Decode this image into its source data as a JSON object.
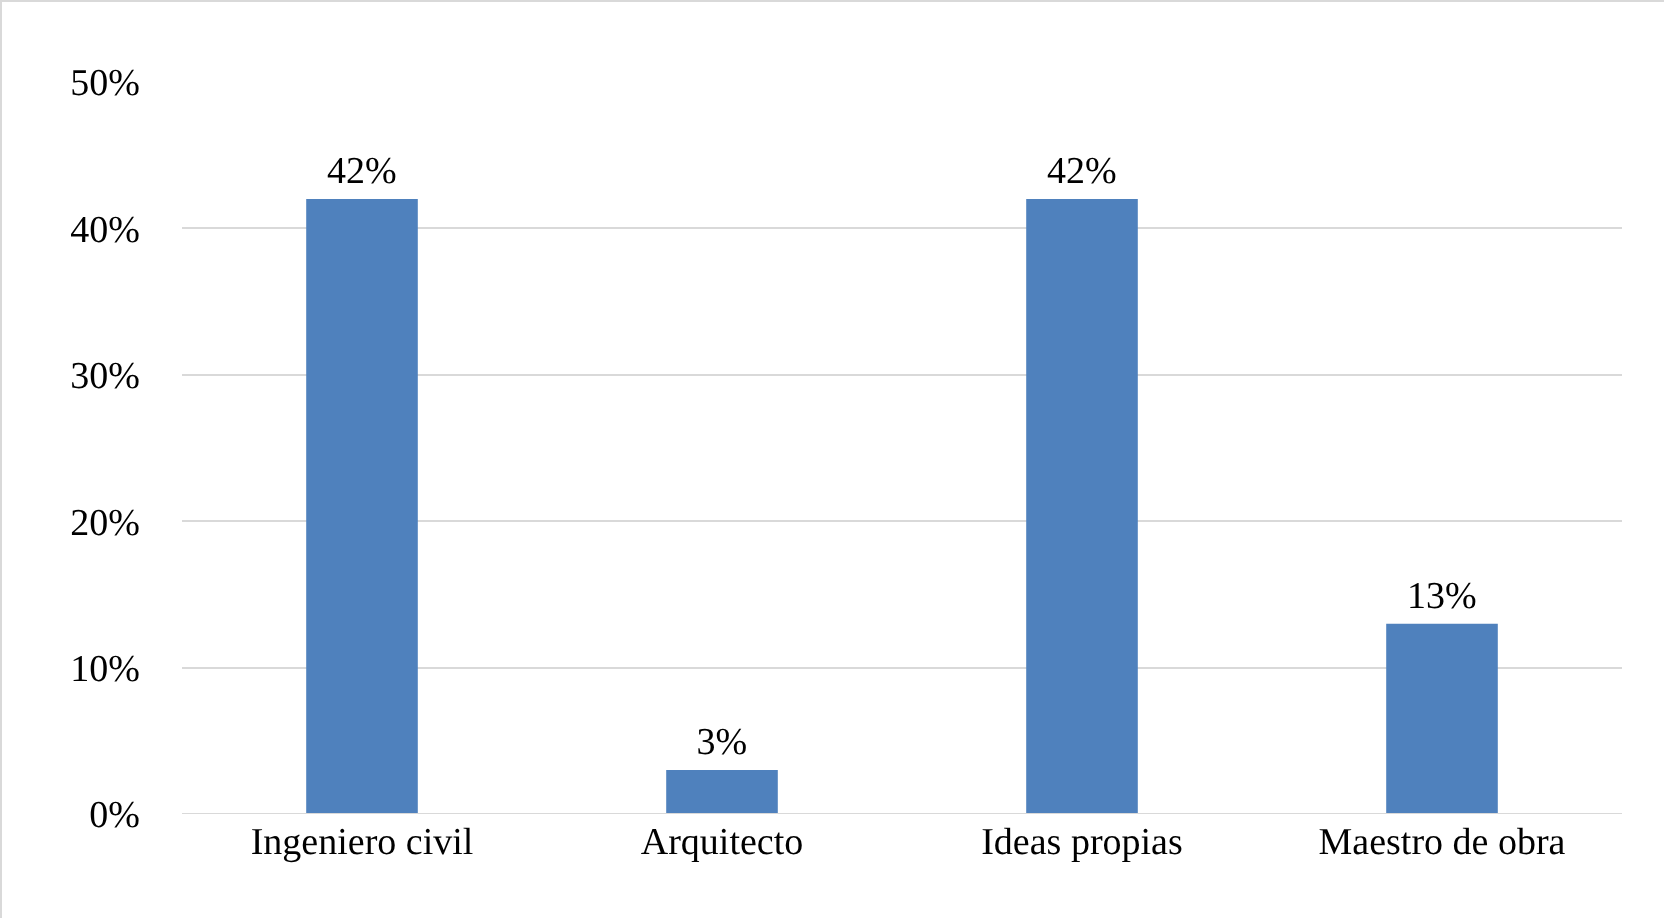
{
  "chart_data": {
    "type": "bar",
    "categories": [
      "Ingeniero civil",
      "Arquitecto",
      "Ideas propias",
      "Maestro de obra"
    ],
    "values": [
      42,
      3,
      42,
      13
    ],
    "value_labels": [
      "42%",
      "3%",
      "42%",
      "13%"
    ],
    "color": "#4f81bd",
    "ylim": [
      0,
      50
    ],
    "yticks": [
      {
        "value": 0,
        "label": "0%"
      },
      {
        "value": 10,
        "label": "10%"
      },
      {
        "value": 20,
        "label": "20%"
      },
      {
        "value": 30,
        "label": "30%"
      },
      {
        "value": 40,
        "label": "40%"
      },
      {
        "value": 50,
        "label": "50%"
      }
    ],
    "grid": "y"
  }
}
